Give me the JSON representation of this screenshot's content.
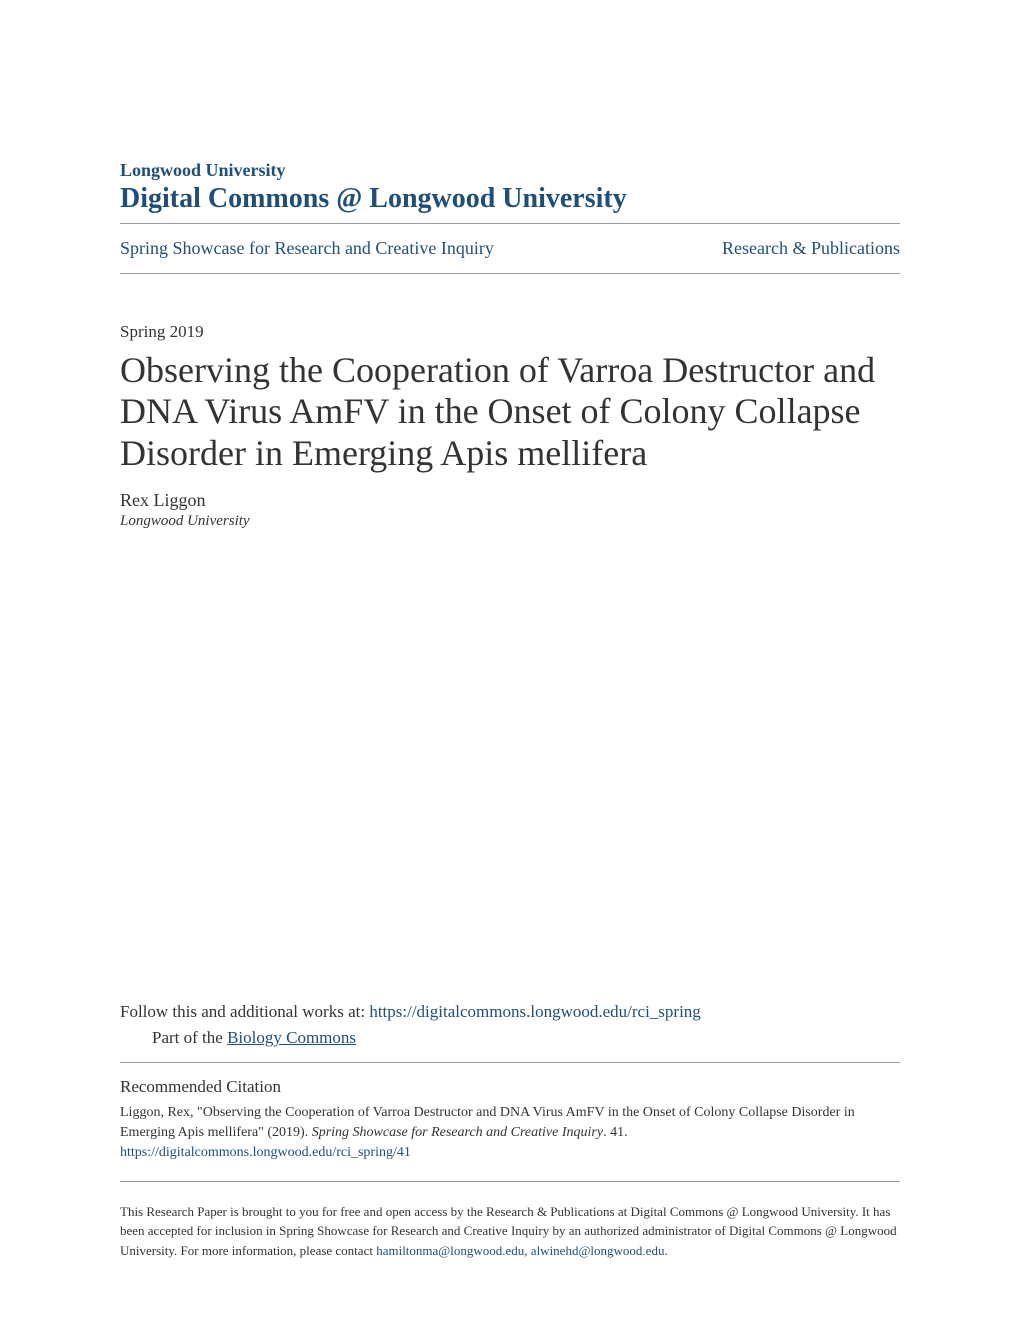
{
  "header": {
    "university": "Longwood University",
    "repository": "Digital Commons @ Longwood University"
  },
  "nav": {
    "left": "Spring Showcase for Research and Creative Inquiry",
    "right": "Research & Publications"
  },
  "article": {
    "date": "Spring 2019",
    "title": "Observing the Cooperation of Varroa Destructor and DNA Virus AmFV in the Onset of Colony Collapse Disorder in Emerging Apis mellifera",
    "author": "Rex Liggon",
    "affiliation": "Longwood University"
  },
  "follow": {
    "prefix": "Follow this and additional works at: ",
    "url": "https://digitalcommons.longwood.edu/rci_spring",
    "part_prefix": "Part of the ",
    "part_link": "Biology Commons"
  },
  "citation": {
    "header": "Recommended Citation",
    "text_1": "Liggon, Rex, \"Observing the Cooperation of Varroa Destructor and DNA Virus AmFV in the Onset of Colony Collapse Disorder in Emerging Apis mellifera\" (2019). ",
    "text_italic": "Spring Showcase for Research and Creative Inquiry",
    "text_2": ". 41.",
    "url": "https://digitalcommons.longwood.edu/rci_spring/41"
  },
  "footer": {
    "text_1": "This Research Paper is brought to you for free and open access by the Research & Publications at Digital Commons @ Longwood University. It has been accepted for inclusion in Spring Showcase for Research and Creative Inquiry by an authorized administrator of Digital Commons @ Longwood University. For more information, please contact ",
    "email": "hamiltonma@longwood.edu, alwinehd@longwood.edu",
    "text_2": "."
  },
  "colors": {
    "brand": "#1f4e79",
    "text": "#333333",
    "divider": "#999999",
    "background": "#ffffff"
  }
}
